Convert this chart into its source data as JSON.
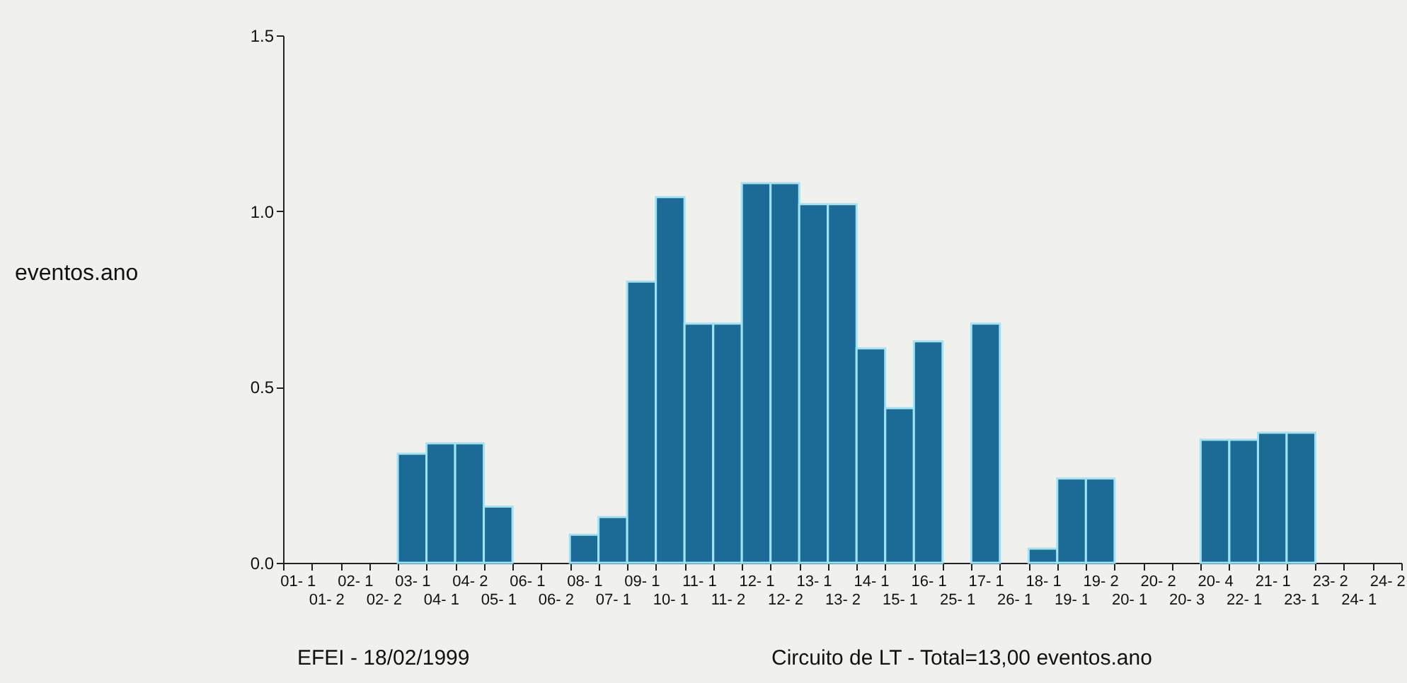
{
  "chart_data": {
    "type": "bar",
    "categories": [
      "01- 1",
      "01- 2",
      "02- 1",
      "02- 2",
      "03- 1",
      "04- 1",
      "04- 2",
      "05- 1",
      "06- 1",
      "06- 2",
      "08- 1",
      "07- 1",
      "09- 1",
      "10- 1",
      "11- 1",
      "11- 2",
      "12- 1",
      "12- 2",
      "13- 1",
      "13- 2",
      "14- 1",
      "15- 1",
      "16- 1",
      "25- 1",
      "17- 1",
      "26- 1",
      "18- 1",
      "19- 1",
      "19- 2",
      "20- 1",
      "20- 2",
      "20- 3",
      "20- 4",
      "22- 1",
      "21- 1",
      "23- 1",
      "23- 2",
      "24- 1",
      "24- 2"
    ],
    "values": [
      0,
      0,
      0,
      0,
      0.31,
      0.34,
      0.34,
      0.16,
      0,
      0,
      0.08,
      0.13,
      0.8,
      1.04,
      0.68,
      0.68,
      1.08,
      1.08,
      1.02,
      1.02,
      0.61,
      0.44,
      0.63,
      0,
      0.68,
      0,
      0.04,
      0.24,
      0.24,
      0,
      0,
      0,
      0.35,
      0.35,
      0.37,
      0.37,
      0,
      0,
      0
    ],
    "color": "#1c6a96",
    "ylabel": "eventos.ano",
    "ylim": [
      0,
      1.5
    ],
    "yticks": [
      {
        "value": 0,
        "label": "0.0"
      },
      {
        "value": 0.5,
        "label": "0.5"
      },
      {
        "value": 1,
        "label": "1.0"
      },
      {
        "value": 1.5,
        "label": "1.5"
      }
    ],
    "grid": false,
    "annotations": [
      "EFEI - 18/02/1999",
      "Circuito de LT - Total=13,00 eventos.ano"
    ]
  }
}
